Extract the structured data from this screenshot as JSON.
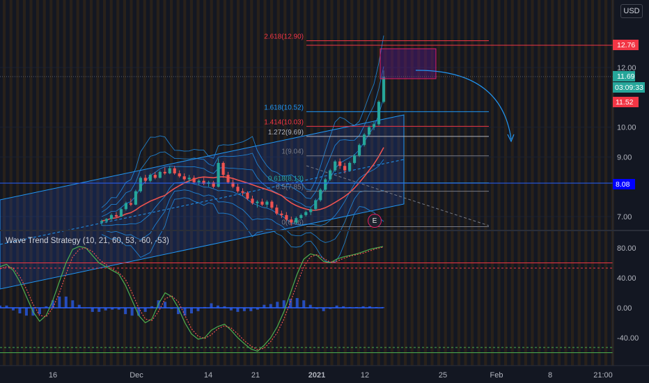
{
  "currency_button": "USD",
  "indicator_name": "Wave Trend Strategy (10, 21, 60, 53, -60, -53)",
  "earnings_badge": "E",
  "price_axis_ticks": [
    "12.00",
    "10.00",
    "9.00",
    "7.00"
  ],
  "price_axis_partial": [
    "1",
    "12.00",
    "11.??"
  ],
  "osc_axis_ticks": [
    "80.00",
    "40.00",
    "0.00",
    "-40.00"
  ],
  "time_axis_ticks": [
    "16",
    "Dec",
    "14",
    "21",
    "2021",
    "12",
    "25",
    "Feb",
    "8",
    "21:00"
  ],
  "price_tags": {
    "high_line": "12.76",
    "last_price": "11.69",
    "countdown": "03:09:33",
    "prev_close": "11.52",
    "support": "8.08"
  },
  "fib_levels": [
    {
      "label": "2.618(12.90)",
      "price": 12.9,
      "color": "#f23645"
    },
    {
      "label": "1.618(10.52)",
      "price": 10.52,
      "color": "#2196f3"
    },
    {
      "label": "1.414(10.03)",
      "price": 10.03,
      "color": "#f23645"
    },
    {
      "label": "1.272(9.69)",
      "price": 9.69,
      "color": "#b2b5be"
    },
    {
      "label": "1(9.04)",
      "price": 9.04,
      "color": "#787b86"
    },
    {
      "label": "0.618(8.13)",
      "price": 8.13,
      "color": "#26a69a"
    },
    {
      "label": "0.5(7.85)",
      "price": 7.85,
      "color": "#787b86"
    },
    {
      "label": "0(6.66)",
      "price": 6.66,
      "color": "#787b86"
    }
  ],
  "colors": {
    "background": "#131722",
    "up": "#26a69a",
    "down": "#ef5350",
    "channel": "#2962ff",
    "support_tag": "#0000ff",
    "high_tag": "#f23645",
    "box": "#6a1b9a"
  },
  "chart_data": [
    {
      "type": "candlestick",
      "title": "",
      "ylim": [
        6.6,
        13.2
      ],
      "yticks": [
        7,
        9,
        10,
        12
      ],
      "x": [
        "16",
        "Dec",
        "14",
        "21",
        "2021",
        "12",
        "25",
        "Feb",
        "8",
        "21:00"
      ],
      "candles": [
        [
          6.8,
          6.9,
          6.7,
          6.85
        ],
        [
          6.85,
          6.95,
          6.78,
          6.92
        ],
        [
          6.92,
          7.1,
          6.88,
          7.05
        ],
        [
          7.05,
          7.15,
          6.95,
          7.0
        ],
        [
          7.0,
          7.3,
          6.98,
          7.25
        ],
        [
          7.25,
          7.5,
          7.2,
          7.45
        ],
        [
          7.45,
          7.6,
          7.35,
          7.4
        ],
        [
          7.4,
          7.9,
          7.38,
          7.85
        ],
        [
          7.85,
          8.35,
          7.8,
          8.3
        ],
        [
          8.3,
          8.4,
          8.1,
          8.2
        ],
        [
          8.2,
          8.45,
          8.15,
          8.4
        ],
        [
          8.4,
          8.5,
          8.25,
          8.3
        ],
        [
          8.3,
          8.55,
          8.28,
          8.5
        ],
        [
          8.5,
          8.65,
          8.4,
          8.45
        ],
        [
          8.45,
          8.7,
          8.42,
          8.62
        ],
        [
          8.62,
          8.7,
          8.4,
          8.45
        ],
        [
          8.45,
          8.55,
          8.3,
          8.35
        ],
        [
          8.35,
          8.45,
          8.2,
          8.25
        ],
        [
          8.25,
          8.4,
          8.15,
          8.3
        ],
        [
          8.3,
          8.38,
          8.1,
          8.15
        ],
        [
          8.15,
          8.25,
          8.05,
          8.2
        ],
        [
          8.2,
          8.3,
          8.05,
          8.1
        ],
        [
          8.1,
          8.2,
          8.0,
          8.15
        ],
        [
          8.15,
          8.2,
          7.95,
          8.0
        ],
        [
          8.0,
          8.95,
          7.98,
          8.8
        ],
        [
          8.8,
          8.85,
          8.3,
          8.4
        ],
        [
          8.4,
          8.5,
          8.1,
          8.15
        ],
        [
          8.15,
          8.25,
          7.95,
          8.0
        ],
        [
          8.0,
          8.1,
          7.8,
          7.85
        ],
        [
          7.85,
          7.95,
          7.7,
          7.8
        ],
        [
          7.8,
          7.85,
          7.55,
          7.6
        ],
        [
          7.6,
          7.7,
          7.4,
          7.45
        ],
        [
          7.45,
          7.55,
          7.3,
          7.5
        ],
        [
          7.5,
          7.6,
          7.35,
          7.4
        ],
        [
          7.4,
          7.55,
          7.3,
          7.5
        ],
        [
          7.5,
          7.55,
          7.25,
          7.3
        ],
        [
          7.3,
          7.4,
          7.05,
          7.1
        ],
        [
          7.1,
          7.2,
          6.95,
          7.05
        ],
        [
          7.05,
          7.15,
          6.85,
          6.9
        ],
        [
          6.9,
          7.0,
          6.7,
          6.8
        ],
        [
          6.8,
          7.0,
          6.75,
          6.95
        ],
        [
          6.95,
          7.1,
          6.9,
          7.05
        ],
        [
          7.05,
          7.2,
          7.0,
          7.15
        ],
        [
          7.15,
          7.3,
          7.05,
          7.25
        ],
        [
          7.25,
          7.6,
          7.2,
          7.55
        ],
        [
          7.55,
          7.95,
          7.5,
          7.9
        ],
        [
          7.9,
          8.3,
          7.85,
          8.25
        ],
        [
          8.25,
          8.6,
          8.2,
          8.55
        ],
        [
          8.55,
          8.9,
          8.5,
          8.85
        ],
        [
          8.85,
          8.95,
          8.6,
          8.7
        ],
        [
          8.7,
          8.8,
          8.45,
          8.55
        ],
        [
          8.55,
          8.85,
          8.5,
          8.8
        ],
        [
          8.8,
          9.1,
          8.75,
          9.05
        ],
        [
          9.05,
          9.45,
          9.0,
          9.4
        ],
        [
          9.4,
          9.8,
          9.35,
          9.75
        ],
        [
          9.75,
          10.05,
          9.7,
          10.0
        ],
        [
          10.0,
          10.2,
          9.9,
          10.1
        ],
        [
          10.1,
          10.9,
          10.05,
          10.85
        ],
        [
          10.85,
          11.9,
          10.8,
          11.69
        ]
      ]
    },
    {
      "type": "line",
      "title": "Wave Trend Strategy (10, 21, 60, 53, -60, -53)",
      "ylim": [
        -62,
        95
      ],
      "yticks": [
        80,
        40,
        0,
        -40
      ],
      "reference_levels": [
        60,
        53,
        -60,
        -53
      ],
      "series": [
        {
          "name": "wt1",
          "values": [
            55,
            58,
            50,
            35,
            15,
            -5,
            -18,
            -10,
            10,
            35,
            60,
            78,
            82,
            80,
            70,
            60,
            55,
            50,
            45,
            30,
            10,
            -10,
            -20,
            -15,
            5,
            20,
            15,
            0,
            -20,
            -35,
            -42,
            -40,
            -30,
            -25,
            -22,
            -30,
            -40,
            -48,
            -55,
            -58,
            -50,
            -40,
            -25,
            -5,
            20,
            45,
            65,
            72,
            70,
            62,
            60,
            65,
            68,
            70,
            72,
            75,
            78,
            80,
            82
          ]
        },
        {
          "name": "wt2",
          "values": [
            52,
            55,
            53,
            42,
            25,
            5,
            -10,
            -12,
            0,
            20,
            45,
            68,
            78,
            80,
            75,
            65,
            58,
            52,
            47,
            38,
            20,
            0,
            -15,
            -17,
            -5,
            12,
            16,
            8,
            -10,
            -28,
            -38,
            -41,
            -36,
            -28,
            -24,
            -27,
            -35,
            -44,
            -51,
            -56,
            -54,
            -45,
            -33,
            -15,
            8,
            32,
            55,
            68,
            71,
            66,
            61,
            62,
            66,
            69,
            71,
            73,
            76,
            79,
            81
          ]
        },
        {
          "name": "diff",
          "values": [
            3,
            3,
            -3,
            -7,
            -10,
            -10,
            -8,
            2,
            10,
            15,
            15,
            10,
            4,
            0,
            -5,
            -5,
            -3,
            -2,
            -2,
            -8,
            -10,
            -10,
            -5,
            2,
            10,
            8,
            -1,
            -8,
            -10,
            -7,
            -4,
            1,
            6,
            3,
            2,
            -3,
            -5,
            -4,
            -4,
            -2,
            4,
            5,
            8,
            10,
            12,
            13,
            10,
            4,
            -1,
            -4,
            -1,
            3,
            2,
            1,
            1,
            2,
            2,
            1,
            1
          ]
        }
      ]
    }
  ]
}
